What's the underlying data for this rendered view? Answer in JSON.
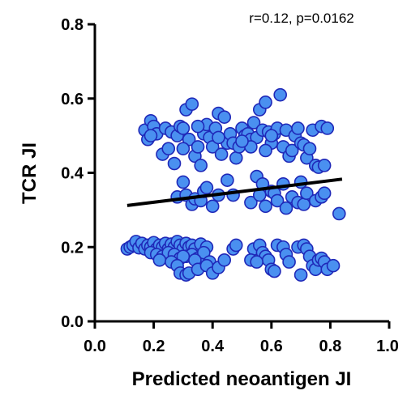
{
  "chart_data": {
    "type": "scatter",
    "xlabel": "Predicted neoantigen JI",
    "ylabel": "TCR JI",
    "xlim": [
      0.0,
      1.0
    ],
    "ylim": [
      0.0,
      0.8
    ],
    "xticks": [
      "0.0",
      "0.2",
      "0.4",
      "0.6",
      "0.8",
      "1.0"
    ],
    "yticks": [
      "0.0",
      "0.2",
      "0.4",
      "0.6",
      "0.8"
    ],
    "annotation": "r=0.12, p=0.0162",
    "grid": false,
    "legend": "none",
    "colors": {
      "marker_fill": "#4a90f0",
      "marker_edge": "#1f28b8",
      "fit_line": "#000000"
    },
    "fit_line": {
      "x": [
        0.11,
        0.84
      ],
      "y": [
        0.312,
        0.383
      ]
    },
    "points": [
      [
        0.11,
        0.195
      ],
      [
        0.12,
        0.2
      ],
      [
        0.13,
        0.205
      ],
      [
        0.14,
        0.215
      ],
      [
        0.15,
        0.198
      ],
      [
        0.16,
        0.21
      ],
      [
        0.17,
        0.195
      ],
      [
        0.18,
        0.205
      ],
      [
        0.19,
        0.2
      ],
      [
        0.2,
        0.212
      ],
      [
        0.21,
        0.195
      ],
      [
        0.22,
        0.205
      ],
      [
        0.23,
        0.2
      ],
      [
        0.24,
        0.21
      ],
      [
        0.25,
        0.195
      ],
      [
        0.26,
        0.208
      ],
      [
        0.27,
        0.2
      ],
      [
        0.28,
        0.215
      ],
      [
        0.29,
        0.205
      ],
      [
        0.3,
        0.195
      ],
      [
        0.31,
        0.21
      ],
      [
        0.32,
        0.2
      ],
      [
        0.33,
        0.205
      ],
      [
        0.34,
        0.195
      ],
      [
        0.36,
        0.208
      ],
      [
        0.38,
        0.2
      ],
      [
        0.19,
        0.185
      ],
      [
        0.21,
        0.18
      ],
      [
        0.23,
        0.175
      ],
      [
        0.25,
        0.185
      ],
      [
        0.27,
        0.18
      ],
      [
        0.29,
        0.17
      ],
      [
        0.31,
        0.175
      ],
      [
        0.33,
        0.18
      ],
      [
        0.35,
        0.17
      ],
      [
        0.37,
        0.185
      ],
      [
        0.22,
        0.165
      ],
      [
        0.26,
        0.16
      ],
      [
        0.3,
        0.175
      ],
      [
        0.34,
        0.165
      ],
      [
        0.39,
        0.16
      ],
      [
        0.28,
        0.15
      ],
      [
        0.29,
        0.13
      ],
      [
        0.31,
        0.125
      ],
      [
        0.32,
        0.13
      ],
      [
        0.35,
        0.14
      ],
      [
        0.38,
        0.15
      ],
      [
        0.4,
        0.13
      ],
      [
        0.42,
        0.145
      ],
      [
        0.44,
        0.165
      ],
      [
        0.47,
        0.195
      ],
      [
        0.48,
        0.205
      ],
      [
        0.54,
        0.195
      ],
      [
        0.56,
        0.205
      ],
      [
        0.57,
        0.185
      ],
      [
        0.58,
        0.175
      ],
      [
        0.59,
        0.165
      ],
      [
        0.6,
        0.14
      ],
      [
        0.61,
        0.135
      ],
      [
        0.62,
        0.205
      ],
      [
        0.64,
        0.2
      ],
      [
        0.65,
        0.18
      ],
      [
        0.66,
        0.16
      ],
      [
        0.69,
        0.2
      ],
      [
        0.7,
        0.125
      ],
      [
        0.71,
        0.205
      ],
      [
        0.72,
        0.195
      ],
      [
        0.73,
        0.175
      ],
      [
        0.74,
        0.15
      ],
      [
        0.75,
        0.14
      ],
      [
        0.76,
        0.165
      ],
      [
        0.77,
        0.17
      ],
      [
        0.78,
        0.16
      ],
      [
        0.79,
        0.14
      ],
      [
        0.81,
        0.15
      ],
      [
        0.53,
        0.165
      ],
      [
        0.55,
        0.16
      ],
      [
        0.28,
        0.335
      ],
      [
        0.3,
        0.375
      ],
      [
        0.31,
        0.34
      ],
      [
        0.33,
        0.315
      ],
      [
        0.34,
        0.33
      ],
      [
        0.36,
        0.325
      ],
      [
        0.37,
        0.35
      ],
      [
        0.38,
        0.36
      ],
      [
        0.4,
        0.31
      ],
      [
        0.42,
        0.34
      ],
      [
        0.45,
        0.38
      ],
      [
        0.47,
        0.34
      ],
      [
        0.53,
        0.32
      ],
      [
        0.55,
        0.39
      ],
      [
        0.56,
        0.34
      ],
      [
        0.57,
        0.37
      ],
      [
        0.58,
        0.31
      ],
      [
        0.6,
        0.35
      ],
      [
        0.61,
        0.345
      ],
      [
        0.62,
        0.325
      ],
      [
        0.64,
        0.37
      ],
      [
        0.65,
        0.305
      ],
      [
        0.67,
        0.335
      ],
      [
        0.69,
        0.32
      ],
      [
        0.7,
        0.375
      ],
      [
        0.71,
        0.315
      ],
      [
        0.72,
        0.345
      ],
      [
        0.75,
        0.325
      ],
      [
        0.77,
        0.335
      ],
      [
        0.78,
        0.345
      ],
      [
        0.83,
        0.29
      ],
      [
        0.17,
        0.515
      ],
      [
        0.18,
        0.49
      ],
      [
        0.19,
        0.54
      ],
      [
        0.2,
        0.525
      ],
      [
        0.21,
        0.505
      ],
      [
        0.23,
        0.45
      ],
      [
        0.24,
        0.52
      ],
      [
        0.25,
        0.465
      ],
      [
        0.26,
        0.51
      ],
      [
        0.27,
        0.425
      ],
      [
        0.28,
        0.5
      ],
      [
        0.29,
        0.525
      ],
      [
        0.3,
        0.52
      ],
      [
        0.31,
        0.57
      ],
      [
        0.32,
        0.49
      ],
      [
        0.33,
        0.585
      ],
      [
        0.34,
        0.445
      ],
      [
        0.35,
        0.47
      ],
      [
        0.36,
        0.42
      ],
      [
        0.37,
        0.505
      ],
      [
        0.38,
        0.53
      ],
      [
        0.39,
        0.495
      ],
      [
        0.4,
        0.47
      ],
      [
        0.41,
        0.52
      ],
      [
        0.42,
        0.56
      ],
      [
        0.43,
        0.45
      ],
      [
        0.44,
        0.55
      ],
      [
        0.45,
        0.48
      ],
      [
        0.46,
        0.505
      ],
      [
        0.47,
        0.48
      ],
      [
        0.48,
        0.44
      ],
      [
        0.49,
        0.47
      ],
      [
        0.5,
        0.52
      ],
      [
        0.51,
        0.5
      ],
      [
        0.52,
        0.505
      ],
      [
        0.53,
        0.49
      ],
      [
        0.54,
        0.535
      ],
      [
        0.55,
        0.495
      ],
      [
        0.56,
        0.57
      ],
      [
        0.57,
        0.515
      ],
      [
        0.58,
        0.59
      ],
      [
        0.59,
        0.51
      ],
      [
        0.6,
        0.48
      ],
      [
        0.61,
        0.505
      ],
      [
        0.62,
        0.52
      ],
      [
        0.63,
        0.61
      ],
      [
        0.64,
        0.47
      ],
      [
        0.65,
        0.515
      ],
      [
        0.66,
        0.445
      ],
      [
        0.67,
        0.46
      ],
      [
        0.68,
        0.5
      ],
      [
        0.69,
        0.52
      ],
      [
        0.7,
        0.48
      ],
      [
        0.71,
        0.475
      ],
      [
        0.72,
        0.44
      ],
      [
        0.73,
        0.465
      ],
      [
        0.74,
        0.515
      ],
      [
        0.75,
        0.42
      ],
      [
        0.76,
        0.415
      ],
      [
        0.77,
        0.525
      ],
      [
        0.78,
        0.42
      ],
      [
        0.79,
        0.52
      ],
      [
        0.35,
        0.525
      ],
      [
        0.53,
        0.47
      ],
      [
        0.58,
        0.46
      ],
      [
        0.19,
        0.5
      ],
      [
        0.3,
        0.465
      ],
      [
        0.42,
        0.495
      ],
      [
        0.5,
        0.485
      ],
      [
        0.6,
        0.5
      ]
    ]
  }
}
